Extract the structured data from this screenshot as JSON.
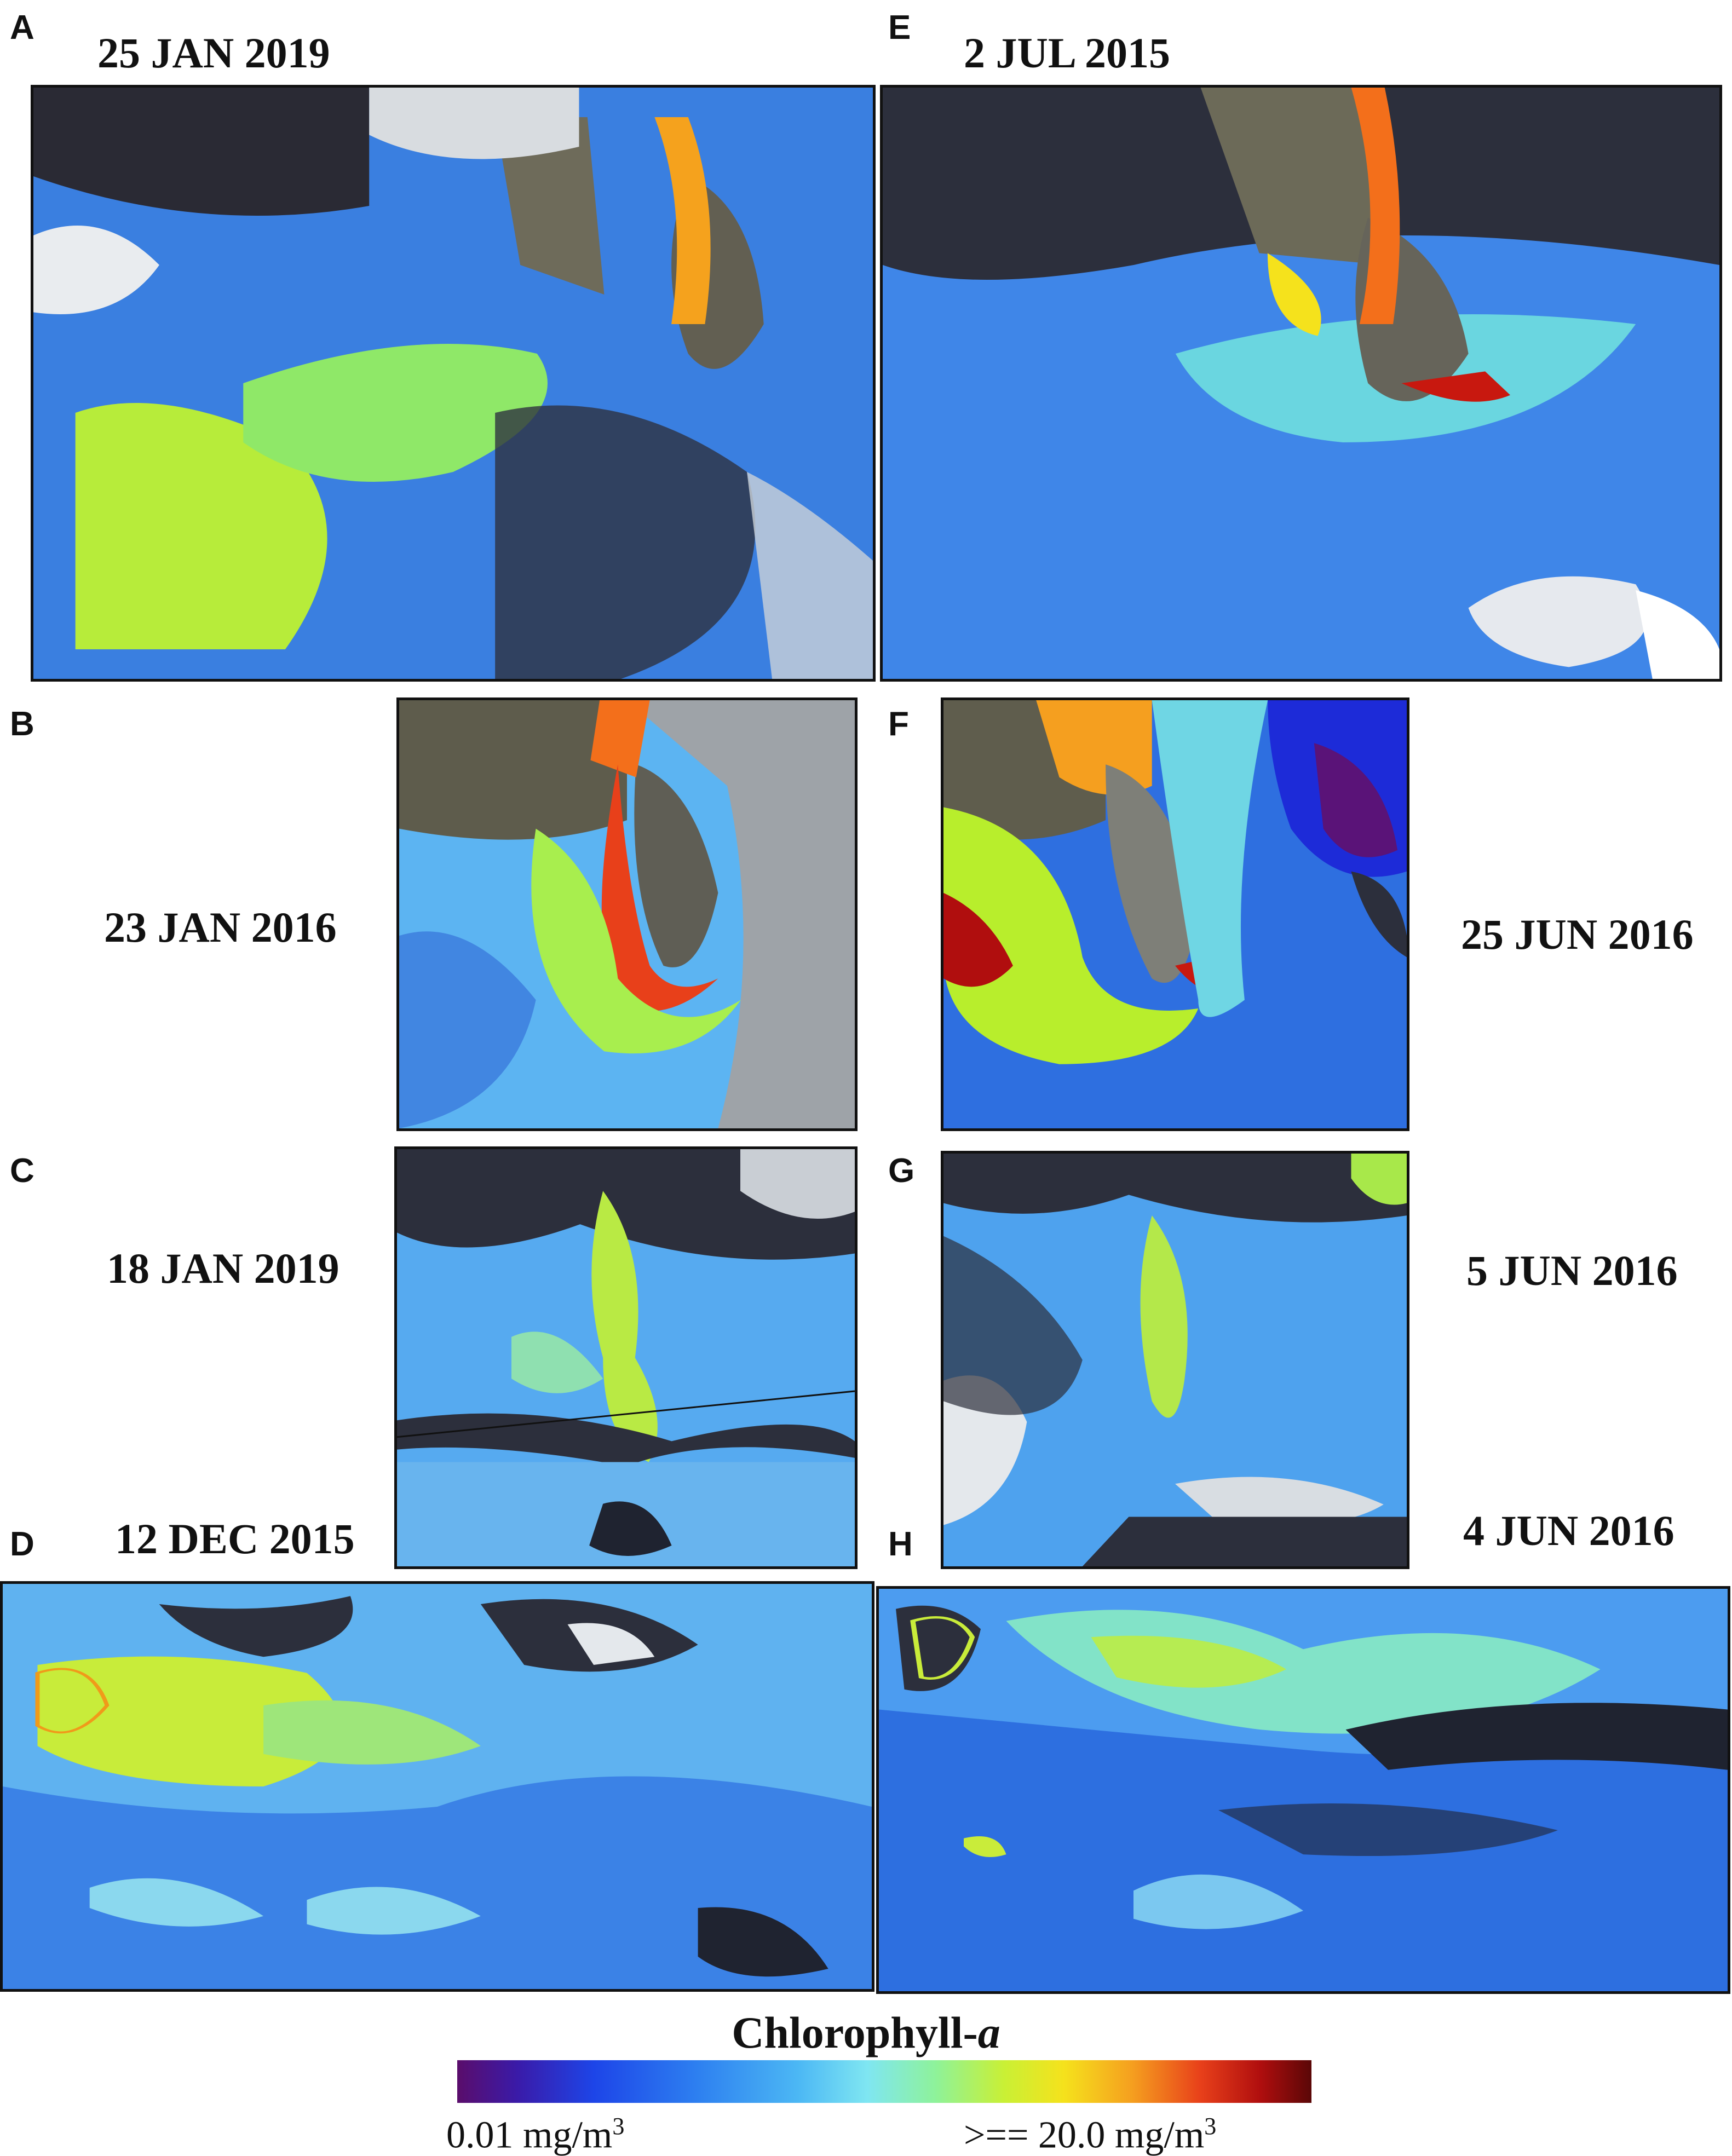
{
  "panels": [
    {
      "letter": "A",
      "date": "25 JAN 2019"
    },
    {
      "letter": "E",
      "date": "2 JUL 2015"
    },
    {
      "letter": "B",
      "date": "23 JAN 2016"
    },
    {
      "letter": "F",
      "date": "25 JUN 2016"
    },
    {
      "letter": "C",
      "date": "18 JAN 2019"
    },
    {
      "letter": "G",
      "date": "5 JUN 2016"
    },
    {
      "letter": "D",
      "date": "12 DEC 2015"
    },
    {
      "letter": "H",
      "date": "4 JUN 2016"
    }
  ],
  "colorbar": {
    "title_main": "Chlorophyll-",
    "title_italic": "a",
    "min_label": "0.01 mg/m",
    "max_label": ">== 20.0 mg/m",
    "unit_exponent": "3",
    "colors": [
      "#5a0d6b",
      "#1d45e8",
      "#4cb8f4",
      "#8ef29a",
      "#f5e21c",
      "#e8401a",
      "#5a0707"
    ]
  }
}
